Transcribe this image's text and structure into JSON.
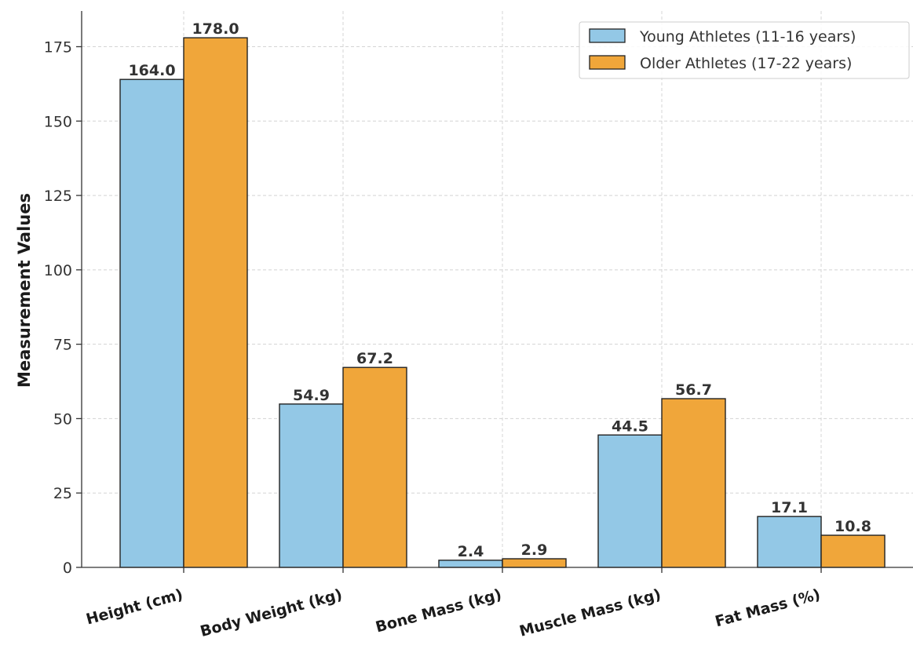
{
  "chart_data": {
    "type": "bar",
    "title": "",
    "xlabel": "",
    "ylabel": "Measurement Values",
    "ylim": [
      0,
      187
    ],
    "yticks": [
      0,
      25,
      50,
      75,
      100,
      125,
      150,
      175
    ],
    "categories": [
      "Height (cm)",
      "Body Weight (kg)",
      "Bone Mass (kg)",
      "Muscle Mass (kg)",
      "Fat Mass (%)"
    ],
    "series": [
      {
        "name": "Young Athletes (11-16 years)",
        "color": "#93c8e6",
        "values": [
          164.0,
          54.9,
          2.4,
          44.5,
          17.1
        ]
      },
      {
        "name": "Older Athletes (17-22 years)",
        "color": "#f0a63a",
        "values": [
          178.0,
          67.2,
          2.9,
          56.7,
          10.8
        ]
      }
    ],
    "grid": true,
    "legend_position": "top-right",
    "value_label_format": "one-decimal"
  }
}
